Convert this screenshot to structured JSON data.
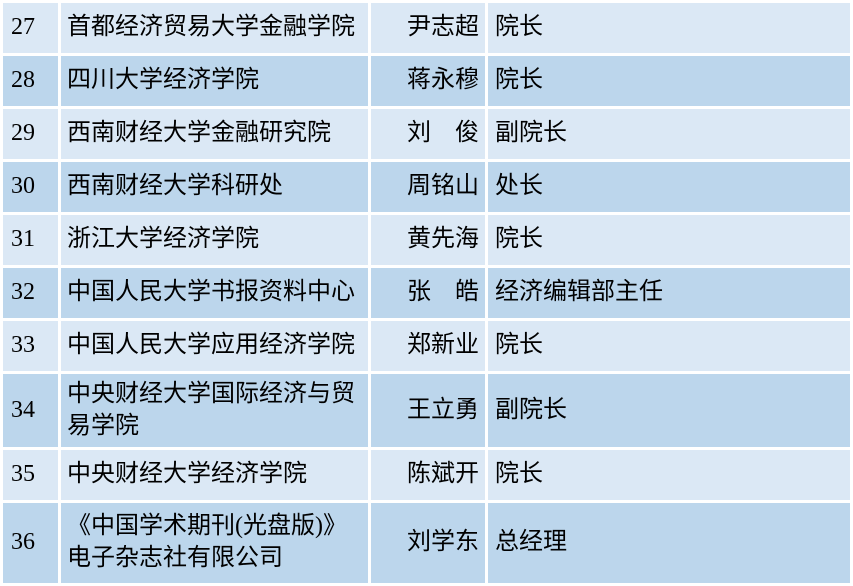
{
  "table": {
    "description": "institution-representative-roster",
    "colors": {
      "row_light": "#dbe8f5",
      "row_dark": "#bcd6ec",
      "gridline": "#ffffff",
      "text": "#000000"
    },
    "rows": [
      {
        "no": "27",
        "institution": "首都经济贸易大学金融学院",
        "name": "尹志超",
        "title": "院长"
      },
      {
        "no": "28",
        "institution": "四川大学经济学院",
        "name": "蒋永穆",
        "title": "院长"
      },
      {
        "no": "29",
        "institution": "西南财经大学金融研究院",
        "name": "刘　俊",
        "title": "副院长"
      },
      {
        "no": "30",
        "institution": "西南财经大学科研处",
        "name": "周铭山",
        "title": "处长"
      },
      {
        "no": "31",
        "institution": "浙江大学经济学院",
        "name": "黄先海",
        "title": "院长"
      },
      {
        "no": "32",
        "institution": "中国人民大学书报资料中心",
        "name": "张　皓",
        "title": "经济编辑部主任"
      },
      {
        "no": "33",
        "institution": "中国人民大学应用经济学院",
        "name": "郑新业",
        "title": "院长"
      },
      {
        "no": "34",
        "institution": "中央财经大学国际经济与贸易学院",
        "name": "王立勇",
        "title": "副院长"
      },
      {
        "no": "35",
        "institution": "中央财经大学经济学院",
        "name": "陈斌开",
        "title": "院长"
      },
      {
        "no": "36",
        "institution": "《中国学术期刊(光盘版)》电子杂志社有限公司",
        "name": "刘学东",
        "title": "总经理"
      }
    ]
  }
}
